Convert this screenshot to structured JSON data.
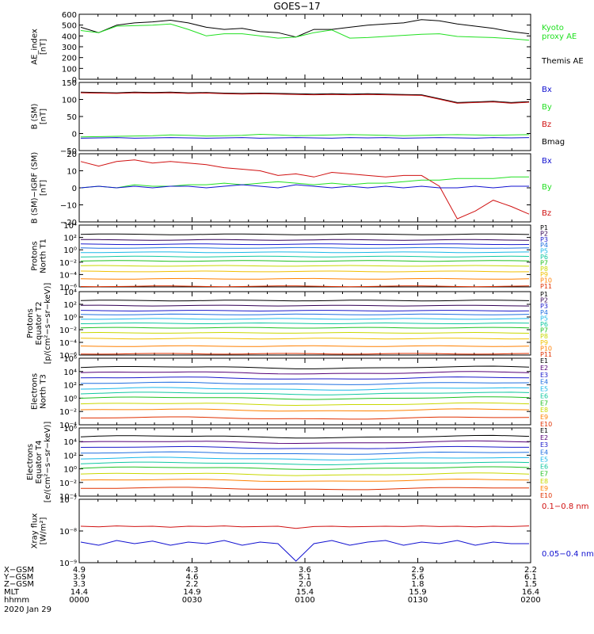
{
  "title": "GOES−17",
  "colors": {
    "black": "#000000",
    "green": "#22e022",
    "blue": "#1010d0",
    "red": "#d01010",
    "P": [
      "#000000",
      "#330055",
      "#1a1acc",
      "#1f6fe0",
      "#18b8e8",
      "#10c8a0",
      "#20c020",
      "#c8d800",
      "#f0c000",
      "#ff8000",
      "#e03000",
      "#c00000"
    ],
    "E": [
      "#000000",
      "#550077",
      "#1a1acc",
      "#1f6fe0",
      "#18b8e8",
      "#10c8a0",
      "#20c020",
      "#c8d800",
      "#ff8000",
      "#e03000",
      "#c00000"
    ]
  },
  "chart_data": [
    {
      "type": "line",
      "panel": "ae",
      "ylabel": [
        "AE_index",
        "[nT]"
      ],
      "ylim": [
        0,
        600
      ],
      "yticks": [
        "600",
        "500",
        "400",
        "300",
        "200",
        "100",
        "0"
      ],
      "legend": [
        {
          "text": "Kyoto",
          "color": "green"
        },
        {
          "text": "proxy AE",
          "color": "green"
        },
        {
          "text": "Themis AE",
          "color": "black"
        }
      ],
      "series": [
        {
          "color": "black",
          "values": [
            480,
            430,
            500,
            520,
            530,
            545,
            520,
            480,
            460,
            470,
            440,
            430,
            390,
            460,
            460,
            480,
            500,
            510,
            520,
            550,
            540,
            510,
            490,
            470,
            440,
            420
          ]
        },
        {
          "color": "green",
          "values": [
            450,
            430,
            490,
            495,
            500,
            510,
            460,
            400,
            420,
            420,
            400,
            380,
            390,
            430,
            455,
            380,
            385,
            395,
            405,
            415,
            420,
            395,
            390,
            385,
            375,
            360
          ]
        }
      ]
    },
    {
      "type": "line",
      "panel": "bsm",
      "ylabel": [
        "B (SM)",
        "[nT]"
      ],
      "ylim": [
        -60,
        150
      ],
      "yticks": [
        "150",
        "100",
        "50",
        "0",
        "−50"
      ],
      "legend": [
        {
          "text": "Bx",
          "color": "blue"
        },
        {
          "text": "By",
          "color": "green"
        },
        {
          "text": "Bz",
          "color": "red"
        },
        {
          "text": "Bmag",
          "color": "black"
        }
      ],
      "series": [
        {
          "color": "black",
          "values": [
            120,
            119,
            118,
            120,
            119,
            120,
            118,
            119,
            117,
            116,
            117,
            116,
            115,
            114,
            115,
            114,
            115,
            114,
            113,
            112,
            100,
            88,
            90,
            92,
            88,
            91
          ]
        },
        {
          "color": "red",
          "values": [
            118,
            117,
            116,
            118,
            117,
            118,
            116,
            117,
            115,
            114,
            115,
            114,
            113,
            112,
            113,
            112,
            113,
            112,
            111,
            110,
            98,
            86,
            88,
            90,
            86,
            89
          ]
        },
        {
          "color": "blue",
          "values": [
            -22,
            -21,
            -20,
            -22,
            -21,
            -20,
            -21,
            -22,
            -21,
            -20,
            -22,
            -21,
            -20,
            -21,
            -22,
            -20,
            -21,
            -20,
            -22,
            -21,
            -20,
            -21,
            -22,
            -20,
            -21,
            -20
          ]
        },
        {
          "color": "green",
          "values": [
            -18,
            -17,
            -16,
            -15,
            -14,
            -12,
            -13,
            -15,
            -14,
            -13,
            -10,
            -12,
            -14,
            -13,
            -12,
            -11,
            -12,
            -13,
            -14,
            -13,
            -12,
            -11,
            -12,
            -13,
            -12,
            -11
          ]
        }
      ]
    },
    {
      "type": "line",
      "panel": "bigrf",
      "ylabel": [
        "B (SM)−IGRF (SM)",
        "[nT]"
      ],
      "ylim": [
        -22,
        22
      ],
      "yticks": [
        "20",
        "10",
        "0",
        "−10",
        "−20"
      ],
      "legend": [
        {
          "text": "Bx",
          "color": "blue"
        },
        {
          "text": "By",
          "color": "green"
        },
        {
          "text": "Bz",
          "color": "red"
        }
      ],
      "series": [
        {
          "color": "red",
          "values": [
            17,
            14,
            17,
            18,
            16,
            17,
            16,
            15,
            13,
            12,
            11,
            8,
            9,
            7,
            10,
            9,
            8,
            7,
            8,
            8,
            1,
            -20,
            -15,
            -8,
            -12,
            -17
          ]
        },
        {
          "color": "green",
          "values": [
            0,
            1,
            0,
            2,
            1,
            1,
            2,
            2,
            3,
            2,
            3,
            4,
            3,
            2,
            3,
            2,
            3,
            3,
            4,
            5,
            5,
            6,
            6,
            6,
            7,
            7
          ]
        },
        {
          "color": "blue",
          "values": [
            0,
            1,
            0,
            1,
            0,
            1,
            1,
            0,
            1,
            2,
            1,
            0,
            2,
            1,
            0,
            1,
            0,
            1,
            0,
            1,
            0,
            0,
            1,
            0,
            1,
            1
          ]
        }
      ]
    },
    {
      "type": "line",
      "panel": "pn",
      "ylabel": [
        "Protons",
        "North T1"
      ],
      "ylog": true,
      "ylim": [
        "1e-6",
        "1e4"
      ],
      "yticks": [
        "10⁴",
        "10²",
        "10⁰",
        "10⁻²",
        "10⁻⁴",
        "10⁻⁶"
      ],
      "legend": [
        "P1",
        "P2",
        "P3",
        "P4",
        "P5",
        "P6",
        "P7",
        "P8",
        "P9",
        "P10",
        "P11"
      ],
      "levels": [
        2.5,
        1.6,
        0.9,
        0.3,
        -0.4,
        -1.1,
        -1.8,
        -2.6,
        -3.5,
        -4.7,
        -5.9
      ]
    },
    {
      "type": "line",
      "panel": "pe",
      "ylabel": [
        "Protons",
        "Equator T2",
        "[p/(cm²−s−sr−keV)]"
      ],
      "ylog": true,
      "ylim": [
        "1e-6",
        "1e4"
      ],
      "yticks": [
        "10⁴",
        "10²",
        "10⁰",
        "10⁻²",
        "10⁻⁴",
        "10⁻⁶"
      ],
      "legend": [
        "P1",
        "P2",
        "P3",
        "P4",
        "P5",
        "P6",
        "P7",
        "P8",
        "P9",
        "P10",
        "P11"
      ],
      "levels": [
        2.6,
        1.8,
        1.0,
        0.4,
        -0.3,
        -1.0,
        -1.7,
        -2.5,
        -3.4,
        -4.6,
        -5.8
      ]
    },
    {
      "type": "line",
      "panel": "en",
      "ylabel": [
        "Electrons",
        "North T3"
      ],
      "ylog": true,
      "ylim": [
        "1e-4",
        "1e6"
      ],
      "yticks": [
        "10⁶",
        "10⁴",
        "10²",
        "10⁰",
        "10⁻²",
        "10⁻⁴"
      ],
      "legend": [
        "E1",
        "E2",
        "E3",
        "E4",
        "E5",
        "E6",
        "E7",
        "E8",
        "E9",
        "E10"
      ],
      "levels": [
        4.6,
        3.8,
        3.0,
        2.2,
        1.4,
        0.7,
        0.0,
        -0.9,
        -1.8,
        -3.0
      ]
    },
    {
      "type": "line",
      "panel": "ee",
      "ylabel": [
        "Electrons",
        "Equator T4",
        "[e/(cm²−s−sr−keV)]"
      ],
      "ylog": true,
      "ylim": [
        "1e-4",
        "1e6"
      ],
      "yticks": [
        "10⁶",
        "10⁴",
        "10²",
        "10⁰",
        "10⁻²",
        "10⁻⁴"
      ],
      "legend": [
        "E1",
        "E2",
        "E3",
        "E4",
        "E5",
        "E6",
        "E7",
        "E8",
        "E9",
        "E10"
      ],
      "levels": [
        4.7,
        3.9,
        3.1,
        2.3,
        1.5,
        0.8,
        0.1,
        -0.8,
        -1.7,
        -2.9
      ]
    },
    {
      "type": "line",
      "panel": "xray",
      "ylabel": [
        "Xray flux",
        "[W/m²]"
      ],
      "ylog": true,
      "ylim": [
        "1e-9",
        "1e-7"
      ],
      "yticks": [
        "10⁻⁷",
        "10⁻⁸",
        "10⁻⁹"
      ],
      "legend": [
        {
          "text": "0.1−0.8 nm",
          "color": "red"
        },
        {
          "text": "0.05−0.4 nm",
          "color": "blue"
        }
      ],
      "series": [
        {
          "color": "red",
          "values": [
            -7.85,
            -7.87,
            -7.84,
            -7.86,
            -7.85,
            -7.88,
            -7.85,
            -7.86,
            -7.84,
            -7.87,
            -7.86,
            -7.85,
            -7.92,
            -7.86,
            -7.85,
            -7.87,
            -7.86,
            -7.85,
            -7.86,
            -7.84,
            -7.86,
            -7.85,
            -7.87,
            -7.85,
            -7.86,
            -7.84
          ]
        },
        {
          "color": "blue",
          "values": [
            -8.35,
            -8.45,
            -8.3,
            -8.4,
            -8.32,
            -8.45,
            -8.35,
            -8.4,
            -8.3,
            -8.45,
            -8.35,
            -8.4,
            -8.95,
            -8.4,
            -8.3,
            -8.45,
            -8.35,
            -8.3,
            -8.45,
            -8.35,
            -8.4,
            -8.3,
            -8.45,
            -8.35,
            -8.4,
            -8.4
          ]
        }
      ]
    }
  ],
  "time_axis": {
    "row_labels": [
      "X−GSM",
      "Y−GSM",
      "Z−GSM",
      "MLT",
      "hhmm"
    ],
    "date": "2020 Jan 29",
    "ticks": [
      {
        "values": [
          "4.9",
          "3.9",
          "3.3",
          "14.4",
          "0000"
        ]
      },
      {
        "values": [
          "4.3",
          "4.6",
          "2.2",
          "14.9",
          "0030"
        ]
      },
      {
        "values": [
          "3.6",
          "5.1",
          "2.0",
          "15.4",
          "0100"
        ]
      },
      {
        "values": [
          "2.9",
          "5.6",
          "1.8",
          "15.9",
          "0130"
        ]
      },
      {
        "values": [
          "2.2",
          "6.1",
          "1.5",
          "16.4",
          "0200"
        ]
      }
    ]
  }
}
